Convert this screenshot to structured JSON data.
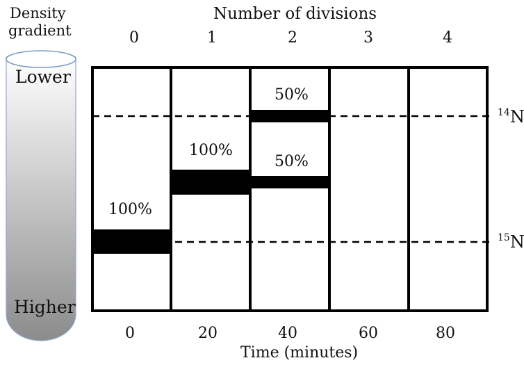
{
  "density_gradient": {
    "label_line1": "Density",
    "label_line2": "gradient",
    "top_label": "Lower",
    "bottom_label": "Higher",
    "gradient_colors": [
      "#ffffff",
      "#8c8c8c"
    ],
    "cap_color": "#7a9ac0"
  },
  "divisions": {
    "title": "Number of divisions",
    "values": [
      "0",
      "1",
      "2",
      "3",
      "4"
    ]
  },
  "time_axis": {
    "title": "Time (minutes)",
    "values": [
      "0",
      "20",
      "40",
      "60",
      "80"
    ]
  },
  "reference_lines": [
    {
      "mass": "14",
      "element": "N"
    },
    {
      "mass": "15",
      "element": "N"
    }
  ],
  "bands": [
    {
      "generation": 0,
      "position": "heavy",
      "label": "100%"
    },
    {
      "generation": 1,
      "position": "hybrid",
      "label": "100%"
    },
    {
      "generation": 2,
      "position": "light",
      "label": "50%"
    },
    {
      "generation": 2,
      "position": "hybrid",
      "label": "50%"
    }
  ]
}
